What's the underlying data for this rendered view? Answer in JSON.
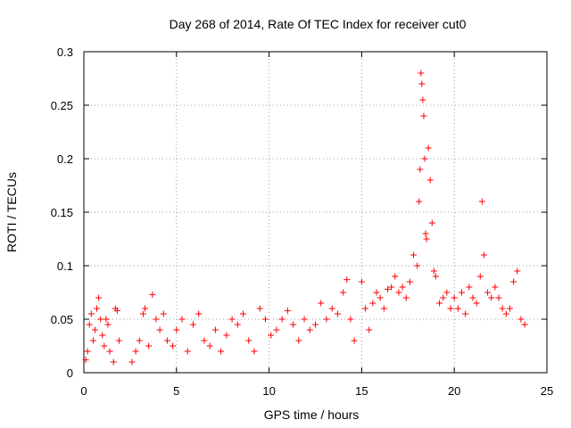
{
  "chart_data": {
    "type": "scatter",
    "title": "Day 268 of 2014, Rate Of TEC Index for receiver cut0",
    "xlabel": "GPS time / hours",
    "ylabel": "ROTI / TECUs",
    "xlim": [
      0,
      25
    ],
    "ylim": [
      0,
      0.3
    ],
    "x_ticks": [
      0,
      5,
      10,
      15,
      20,
      25
    ],
    "y_ticks": [
      0,
      0.05,
      0.1,
      0.15,
      0.2,
      0.25,
      0.3
    ],
    "x_tick_labels": [
      "0",
      "5",
      "10",
      "15",
      "20",
      "25"
    ],
    "y_tick_labels": [
      "0",
      "0.05",
      "0.1",
      "0.15",
      "0.2",
      "0.25",
      "0.3"
    ],
    "grid": true,
    "marker": "plus",
    "color": "#ff0000",
    "series": [
      {
        "name": "ROTI",
        "points": [
          [
            0.1,
            0.012
          ],
          [
            0.2,
            0.02
          ],
          [
            0.3,
            0.045
          ],
          [
            0.4,
            0.055
          ],
          [
            0.5,
            0.03
          ],
          [
            0.6,
            0.04
          ],
          [
            0.7,
            0.06
          ],
          [
            0.8,
            0.07
          ],
          [
            0.9,
            0.05
          ],
          [
            1.0,
            0.035
          ],
          [
            1.1,
            0.025
          ],
          [
            1.2,
            0.05
          ],
          [
            1.3,
            0.045
          ],
          [
            1.4,
            0.02
          ],
          [
            1.6,
            0.01
          ],
          [
            1.7,
            0.06
          ],
          [
            1.8,
            0.058
          ],
          [
            1.9,
            0.03
          ],
          [
            2.6,
            0.01
          ],
          [
            2.8,
            0.02
          ],
          [
            3.0,
            0.03
          ],
          [
            3.2,
            0.055
          ],
          [
            3.3,
            0.06
          ],
          [
            3.5,
            0.025
          ],
          [
            3.7,
            0.073
          ],
          [
            3.9,
            0.05
          ],
          [
            4.1,
            0.04
          ],
          [
            4.3,
            0.055
          ],
          [
            4.5,
            0.03
          ],
          [
            4.8,
            0.025
          ],
          [
            5.0,
            0.04
          ],
          [
            5.3,
            0.05
          ],
          [
            5.6,
            0.02
          ],
          [
            5.9,
            0.045
          ],
          [
            6.2,
            0.055
          ],
          [
            6.5,
            0.03
          ],
          [
            6.8,
            0.025
          ],
          [
            7.1,
            0.04
          ],
          [
            7.4,
            0.02
          ],
          [
            7.7,
            0.035
          ],
          [
            8.0,
            0.05
          ],
          [
            8.3,
            0.045
          ],
          [
            8.6,
            0.055
          ],
          [
            8.9,
            0.03
          ],
          [
            9.2,
            0.02
          ],
          [
            9.5,
            0.06
          ],
          [
            9.8,
            0.05
          ],
          [
            10.1,
            0.035
          ],
          [
            10.4,
            0.04
          ],
          [
            10.7,
            0.05
          ],
          [
            11.0,
            0.058
          ],
          [
            11.3,
            0.045
          ],
          [
            11.6,
            0.03
          ],
          [
            11.9,
            0.05
          ],
          [
            12.2,
            0.04
          ],
          [
            12.5,
            0.045
          ],
          [
            12.8,
            0.065
          ],
          [
            13.1,
            0.05
          ],
          [
            13.4,
            0.06
          ],
          [
            13.7,
            0.055
          ],
          [
            14.0,
            0.075
          ],
          [
            14.2,
            0.087
          ],
          [
            14.4,
            0.05
          ],
          [
            14.6,
            0.03
          ],
          [
            15.0,
            0.085
          ],
          [
            15.2,
            0.06
          ],
          [
            15.4,
            0.04
          ],
          [
            15.6,
            0.065
          ],
          [
            15.8,
            0.075
          ],
          [
            16.0,
            0.07
          ],
          [
            16.2,
            0.06
          ],
          [
            16.4,
            0.078
          ],
          [
            16.6,
            0.08
          ],
          [
            16.8,
            0.09
          ],
          [
            17.0,
            0.075
          ],
          [
            17.2,
            0.08
          ],
          [
            17.4,
            0.07
          ],
          [
            17.6,
            0.085
          ],
          [
            17.8,
            0.11
          ],
          [
            18.0,
            0.1
          ],
          [
            18.1,
            0.16
          ],
          [
            18.15,
            0.19
          ],
          [
            18.2,
            0.28
          ],
          [
            18.25,
            0.27
          ],
          [
            18.3,
            0.255
          ],
          [
            18.35,
            0.24
          ],
          [
            18.4,
            0.2
          ],
          [
            18.45,
            0.13
          ],
          [
            18.5,
            0.125
          ],
          [
            18.6,
            0.21
          ],
          [
            18.7,
            0.18
          ],
          [
            18.8,
            0.14
          ],
          [
            18.9,
            0.095
          ],
          [
            19.0,
            0.09
          ],
          [
            19.2,
            0.065
          ],
          [
            19.4,
            0.07
          ],
          [
            19.6,
            0.075
          ],
          [
            19.8,
            0.06
          ],
          [
            20.0,
            0.07
          ],
          [
            20.2,
            0.06
          ],
          [
            20.4,
            0.075
          ],
          [
            20.6,
            0.055
          ],
          [
            20.8,
            0.08
          ],
          [
            21.0,
            0.07
          ],
          [
            21.2,
            0.065
          ],
          [
            21.4,
            0.09
          ],
          [
            21.5,
            0.16
          ],
          [
            21.6,
            0.11
          ],
          [
            21.8,
            0.075
          ],
          [
            22.0,
            0.07
          ],
          [
            22.2,
            0.08
          ],
          [
            22.4,
            0.07
          ],
          [
            22.6,
            0.06
          ],
          [
            22.8,
            0.055
          ],
          [
            23.0,
            0.06
          ],
          [
            23.2,
            0.085
          ],
          [
            23.4,
            0.095
          ],
          [
            23.6,
            0.05
          ],
          [
            23.8,
            0.045
          ]
        ]
      }
    ]
  }
}
